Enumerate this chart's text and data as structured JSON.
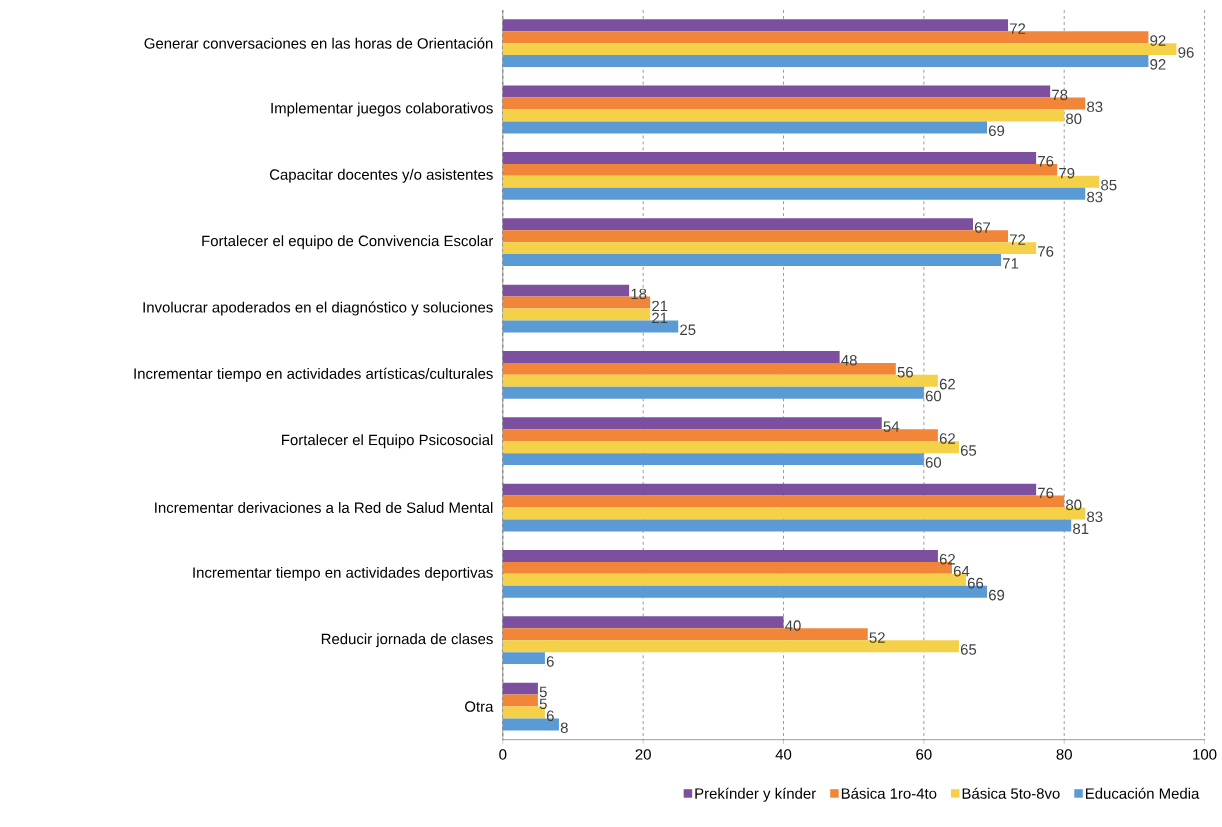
{
  "chart_data": {
    "type": "bar",
    "orientation": "horizontal",
    "categories": [
      "Generar conversaciones en las horas de Orientación",
      "Implementar juegos colaborativos",
      "Capacitar docentes y/o asistentes",
      "Fortalecer el equipo de Convivencia Escolar",
      "Involucrar apoderados en el diagnóstico y soluciones",
      "Incrementar tiempo en actividades artísticas/culturales",
      "Fortalecer el Equipo Psicosocial",
      "Incrementar derivaciones a la Red de Salud Mental",
      "Incrementar tiempo en actividades deportivas",
      "Reducir jornada de clases",
      "Otra"
    ],
    "series": [
      {
        "name": "Prekínder y kínder",
        "color": "#7d4f9f",
        "values": [
          72,
          78,
          76,
          67,
          18,
          48,
          54,
          76,
          62,
          40,
          5
        ]
      },
      {
        "name": "Básica 1ro-4to",
        "color": "#f28638",
        "values": [
          92,
          83,
          79,
          72,
          21,
          56,
          62,
          80,
          64,
          52,
          5
        ]
      },
      {
        "name": "Básica 5to-8vo",
        "color": "#f5d14a",
        "values": [
          96,
          80,
          85,
          76,
          21,
          62,
          65,
          83,
          66,
          65,
          6
        ]
      },
      {
        "name": "Educación Media",
        "color": "#5b9bd5",
        "values": [
          92,
          69,
          83,
          71,
          25,
          60,
          60,
          81,
          69,
          6,
          8
        ]
      }
    ],
    "xlim": [
      0,
      100
    ],
    "xticks": [
      0,
      20,
      40,
      60,
      80,
      100
    ],
    "grid": "x",
    "legend": "bottom",
    "data_labels": true
  }
}
